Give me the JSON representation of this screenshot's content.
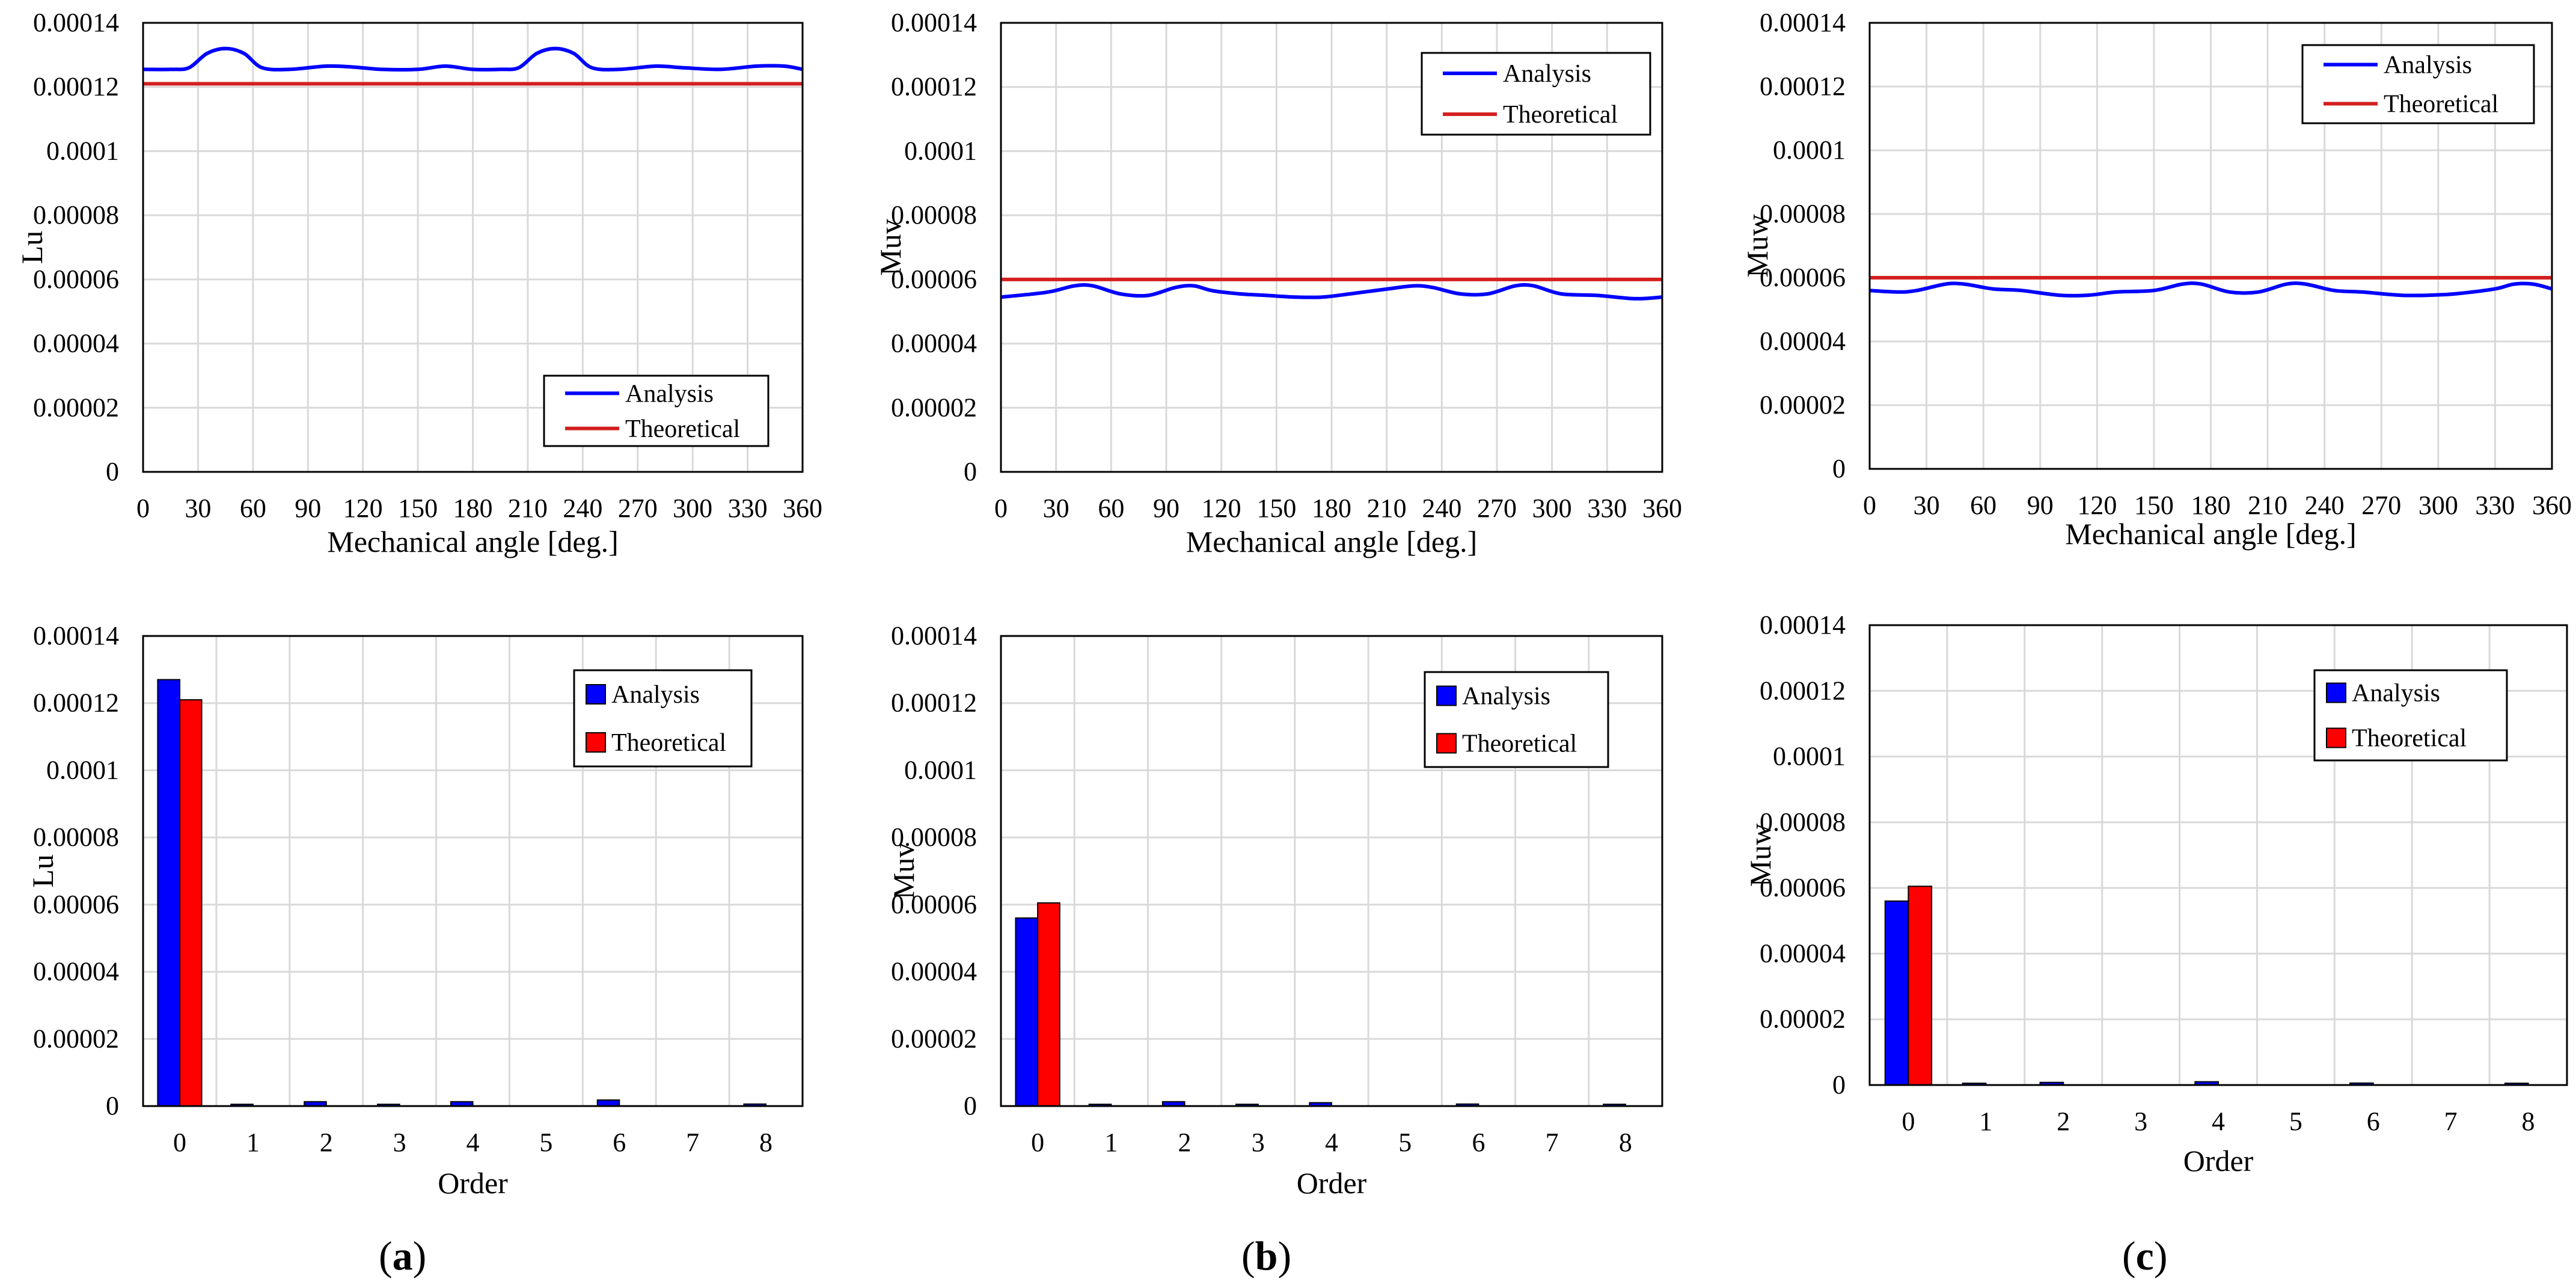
{
  "colors": {
    "analysis": "#0000ff",
    "theoretical": "#ff0000",
    "theoretical_line": "#d42020",
    "grid": "#d9d9d9",
    "axis": "#000000"
  },
  "legend": {
    "analysis": "Analysis",
    "theoretical": "Theoretical"
  },
  "captions": [
    "a",
    "b",
    "c"
  ],
  "chart_data": [
    {
      "id": "a-top",
      "type": "line",
      "title": "",
      "xlabel": "Mechanical angle [deg.]",
      "ylabel": "Lu",
      "xlim": [
        0,
        360
      ],
      "ylim": [
        0,
        0.00014
      ],
      "xticks": [
        0,
        30,
        60,
        90,
        120,
        150,
        180,
        210,
        240,
        270,
        300,
        330,
        360
      ],
      "yticks": [
        "0",
        "0.00002",
        "0.00004",
        "0.00006",
        "0.00008",
        "0.0001",
        "0.00012",
        "0.00014"
      ],
      "legend_position": "bottom-right",
      "series": [
        {
          "name": "Analysis",
          "x": [
            0,
            15,
            25,
            35,
            45,
            55,
            65,
            80,
            100,
            115,
            130,
            150,
            165,
            180,
            195,
            205,
            215,
            225,
            235,
            245,
            260,
            280,
            295,
            315,
            335,
            350,
            360
          ],
          "y": [
            0.0001255,
            0.0001255,
            0.000126,
            0.0001305,
            0.000132,
            0.0001305,
            0.000126,
            0.0001255,
            0.0001265,
            0.0001262,
            0.0001255,
            0.0001255,
            0.0001265,
            0.0001255,
            0.0001255,
            0.000126,
            0.0001305,
            0.000132,
            0.0001305,
            0.000126,
            0.0001255,
            0.0001265,
            0.000126,
            0.0001255,
            0.0001265,
            0.0001265,
            0.0001255
          ]
        },
        {
          "name": "Theoretical",
          "x": [
            0,
            360
          ],
          "y": [
            0.000121,
            0.000121
          ]
        }
      ]
    },
    {
      "id": "b-top",
      "type": "line",
      "title": "",
      "xlabel": "Mechanical angle [deg.]",
      "ylabel": "Muv",
      "xlim": [
        0,
        360
      ],
      "ylim": [
        0,
        0.00014
      ],
      "xticks": [
        0,
        30,
        60,
        90,
        120,
        150,
        180,
        210,
        240,
        270,
        300,
        330,
        360
      ],
      "yticks": [
        "0",
        "0.00002",
        "0.00004",
        "0.00006",
        "0.00008",
        "0.0001",
        "0.00012",
        "0.00014"
      ],
      "legend_position": "top-right",
      "series": [
        {
          "name": "Analysis",
          "x": [
            0,
            25,
            40,
            50,
            65,
            80,
            95,
            105,
            115,
            130,
            145,
            160,
            175,
            190,
            210,
            225,
            235,
            250,
            265,
            280,
            290,
            305,
            325,
            345,
            360
          ],
          "y": [
            5.45e-05,
            5.6e-05,
            5.8e-05,
            5.8e-05,
            5.55e-05,
            5.5e-05,
            5.75e-05,
            5.8e-05,
            5.65e-05,
            5.55e-05,
            5.5e-05,
            5.45e-05,
            5.45e-05,
            5.55e-05,
            5.7e-05,
            5.8e-05,
            5.75e-05,
            5.55e-05,
            5.55e-05,
            5.8e-05,
            5.8e-05,
            5.55e-05,
            5.5e-05,
            5.4e-05,
            5.45e-05
          ]
        },
        {
          "name": "Theoretical",
          "x": [
            0,
            360
          ],
          "y": [
            6e-05,
            6e-05
          ]
        }
      ]
    },
    {
      "id": "c-top",
      "type": "line",
      "title": "",
      "xlabel": "Mechanical angle [deg.]",
      "ylabel": "Muw",
      "xlim": [
        0,
        360
      ],
      "ylim": [
        0,
        0.00014
      ],
      "xticks": [
        0,
        30,
        60,
        90,
        120,
        150,
        180,
        210,
        240,
        270,
        300,
        330,
        360
      ],
      "yticks": [
        "0",
        "0.00002",
        "0.00004",
        "0.00006",
        "0.00008",
        "0.0001",
        "0.00012",
        "0.00014"
      ],
      "legend_position": "top-right",
      "series": [
        {
          "name": "Analysis",
          "x": [
            0,
            15,
            25,
            40,
            50,
            65,
            80,
            100,
            115,
            130,
            150,
            165,
            175,
            190,
            205,
            220,
            230,
            245,
            260,
            280,
            295,
            310,
            330,
            340,
            350,
            360
          ],
          "y": [
            5.6e-05,
            5.55e-05,
            5.6e-05,
            5.8e-05,
            5.8e-05,
            5.65e-05,
            5.6e-05,
            5.45e-05,
            5.45e-05,
            5.55e-05,
            5.6e-05,
            5.8e-05,
            5.8e-05,
            5.55e-05,
            5.55e-05,
            5.8e-05,
            5.8e-05,
            5.6e-05,
            5.55e-05,
            5.45e-05,
            5.45e-05,
            5.5e-05,
            5.65e-05,
            5.8e-05,
            5.8e-05,
            5.65e-05
          ]
        },
        {
          "name": "Theoretical",
          "x": [
            0,
            360
          ],
          "y": [
            6e-05,
            6e-05
          ]
        }
      ]
    },
    {
      "id": "a-bottom",
      "type": "bar",
      "title": "",
      "xlabel": "Order",
      "ylabel": "Lu",
      "categories": [
        "0",
        "1",
        "2",
        "3",
        "4",
        "5",
        "6",
        "7",
        "8"
      ],
      "ylim": [
        0,
        0.00014
      ],
      "yticks": [
        "0",
        "0.00002",
        "0.00004",
        "0.00006",
        "0.00008",
        "0.0001",
        "0.00012",
        "0.00014"
      ],
      "legend_position": "top-right",
      "series": [
        {
          "name": "Analysis",
          "values": [
            0.000127,
            3e-07,
            1.3e-06,
            3e-07,
            1.3e-06,
            0.0,
            1.8e-06,
            0.0,
            6e-07
          ]
        },
        {
          "name": "Theoretical",
          "values": [
            0.000121,
            0,
            0,
            0,
            0,
            0,
            0,
            0,
            0
          ]
        }
      ]
    },
    {
      "id": "b-bottom",
      "type": "bar",
      "title": "",
      "xlabel": "Order",
      "ylabel": "Muv",
      "categories": [
        "0",
        "1",
        "2",
        "3",
        "4",
        "5",
        "6",
        "7",
        "8"
      ],
      "ylim": [
        0,
        0.00014
      ],
      "yticks": [
        "0",
        "0.00002",
        "0.00004",
        "0.00006",
        "0.00008",
        "0.0001",
        "0.00012",
        "0.00014"
      ],
      "legend_position": "top-right",
      "series": [
        {
          "name": "Analysis",
          "values": [
            5.6e-05,
            3e-07,
            1.3e-06,
            3e-07,
            1e-06,
            0.0,
            6e-07,
            0.0,
            3e-07
          ]
        },
        {
          "name": "Theoretical",
          "values": [
            6.05e-05,
            0,
            0,
            0,
            0,
            0,
            0,
            0,
            0
          ]
        }
      ]
    },
    {
      "id": "c-bottom",
      "type": "bar",
      "title": "",
      "xlabel": "Order",
      "ylabel": "Muw",
      "categories": [
        "0",
        "1",
        "2",
        "3",
        "4",
        "5",
        "6",
        "7",
        "8"
      ],
      "ylim": [
        0,
        0.00014
      ],
      "yticks": [
        "0",
        "0.00002",
        "0.00004",
        "0.00006",
        "0.00008",
        "0.0001",
        "0.00012",
        "0.00014"
      ],
      "legend_position": "top-right",
      "series": [
        {
          "name": "Analysis",
          "values": [
            5.6e-05,
            3e-07,
            8e-07,
            0.0,
            1e-06,
            0.0,
            6e-07,
            0.0,
            3e-07
          ]
        },
        {
          "name": "Theoretical",
          "values": [
            6.05e-05,
            0,
            0,
            0,
            0,
            0,
            0,
            0,
            0
          ]
        }
      ]
    }
  ]
}
